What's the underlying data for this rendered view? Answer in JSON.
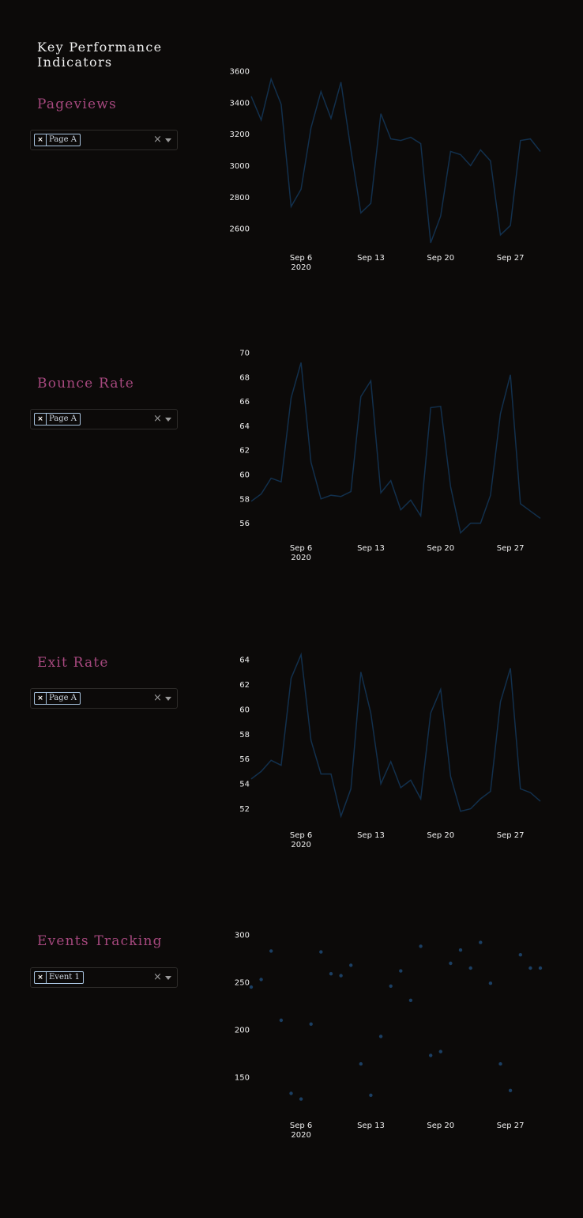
{
  "header": {
    "title": "Key Performance Indicators"
  },
  "colors": {
    "background": "#0c0a09",
    "accent": "#a6487e",
    "series": "#12304d",
    "chip_border": "#a9c4df"
  },
  "icons": {
    "chip_remove": "close-icon",
    "clear": "clear-icon",
    "dropdown": "chevron-down-icon"
  },
  "sections": [
    {
      "title": "Pageviews",
      "dropdown": {
        "selected": "Page A",
        "remove_glyph": "×",
        "clear_glyph": "×"
      }
    },
    {
      "title": "Bounce Rate",
      "dropdown": {
        "selected": "Page A",
        "remove_glyph": "×",
        "clear_glyph": "×"
      }
    },
    {
      "title": "Exit Rate",
      "dropdown": {
        "selected": "Page A",
        "remove_glyph": "×",
        "clear_glyph": "×"
      }
    },
    {
      "title": "Events Tracking",
      "dropdown": {
        "selected": "Event 1",
        "remove_glyph": "×",
        "clear_glyph": "×"
      }
    }
  ],
  "chart_data": [
    {
      "type": "line",
      "x_start": "2020-09-01",
      "x_end": "2020-09-30",
      "x_ticks": [
        {
          "date": "2020-09-06",
          "label": "Sep 6",
          "sub": "2020"
        },
        {
          "date": "2020-09-13",
          "label": "Sep 13"
        },
        {
          "date": "2020-09-20",
          "label": "Sep 20"
        },
        {
          "date": "2020-09-27",
          "label": "Sep 27"
        }
      ],
      "y_ticks": [
        2600,
        2800,
        3000,
        3200,
        3400,
        3600
      ],
      "ylim": [
        2480,
        3660
      ],
      "grid": false,
      "series": [
        {
          "values": [
            3440,
            3290,
            3550,
            3390,
            2740,
            2850,
            3240,
            3470,
            3300,
            3530,
            3100,
            2700,
            2760,
            3330,
            3170,
            3160,
            3180,
            3140,
            2510,
            2680,
            3090,
            3070,
            3000,
            3100,
            3030,
            2560,
            2620,
            3160,
            3170,
            3090
          ]
        }
      ]
    },
    {
      "type": "line",
      "x_start": "2020-09-01",
      "x_end": "2020-09-30",
      "x_ticks": [
        {
          "date": "2020-09-06",
          "label": "Sep 6",
          "sub": "2020"
        },
        {
          "date": "2020-09-13",
          "label": "Sep 13"
        },
        {
          "date": "2020-09-20",
          "label": "Sep 20"
        },
        {
          "date": "2020-09-27",
          "label": "Sep 27"
        }
      ],
      "y_ticks": [
        56,
        58,
        60,
        62,
        64,
        66,
        68,
        70
      ],
      "ylim": [
        54.8,
        70.4
      ],
      "grid": false,
      "series": [
        {
          "values": [
            57.8,
            58.4,
            59.7,
            59.4,
            66.3,
            69.2,
            61.0,
            58.0,
            58.3,
            58.2,
            58.6,
            66.4,
            67.7,
            58.5,
            59.5,
            57.1,
            57.9,
            56.6,
            65.5,
            65.6,
            59.0,
            55.2,
            56.0,
            56.0,
            58.3,
            65.0,
            68.2,
            57.6,
            57.0,
            56.4
          ]
        }
      ]
    },
    {
      "type": "line",
      "x_start": "2020-09-01",
      "x_end": "2020-09-30",
      "x_ticks": [
        {
          "date": "2020-09-06",
          "label": "Sep 6",
          "sub": "2020"
        },
        {
          "date": "2020-09-13",
          "label": "Sep 13"
        },
        {
          "date": "2020-09-20",
          "label": "Sep 20"
        },
        {
          "date": "2020-09-27",
          "label": "Sep 27"
        }
      ],
      "y_ticks": [
        52,
        54,
        56,
        58,
        60,
        62,
        64
      ],
      "ylim": [
        50.7,
        64.7
      ],
      "grid": false,
      "series": [
        {
          "values": [
            54.4,
            55.0,
            55.9,
            55.5,
            62.5,
            64.4,
            57.5,
            54.8,
            54.8,
            51.4,
            53.6,
            63.0,
            59.7,
            54.0,
            55.8,
            53.7,
            54.3,
            52.8,
            59.7,
            61.6,
            54.6,
            51.8,
            52.0,
            52.8,
            53.4,
            60.6,
            63.3,
            53.6,
            53.3,
            52.6
          ]
        }
      ]
    },
    {
      "type": "scatter",
      "x_start": "2020-09-01",
      "x_end": "2020-09-30",
      "x_ticks": [
        {
          "date": "2020-09-06",
          "label": "Sep 6",
          "sub": "2020"
        },
        {
          "date": "2020-09-13",
          "label": "Sep 13"
        },
        {
          "date": "2020-09-20",
          "label": "Sep 20"
        },
        {
          "date": "2020-09-27",
          "label": "Sep 27"
        }
      ],
      "y_ticks": [
        150,
        200,
        250,
        300
      ],
      "ylim": [
        110,
        310
      ],
      "grid": false,
      "series": [
        {
          "values": [
            245,
            253,
            283,
            210,
            133,
            127,
            206,
            282,
            259,
            257,
            268,
            164,
            131,
            193,
            246,
            262,
            231,
            288,
            173,
            177,
            270,
            284,
            265,
            292,
            249,
            164,
            136,
            279,
            265,
            265
          ]
        }
      ]
    }
  ]
}
